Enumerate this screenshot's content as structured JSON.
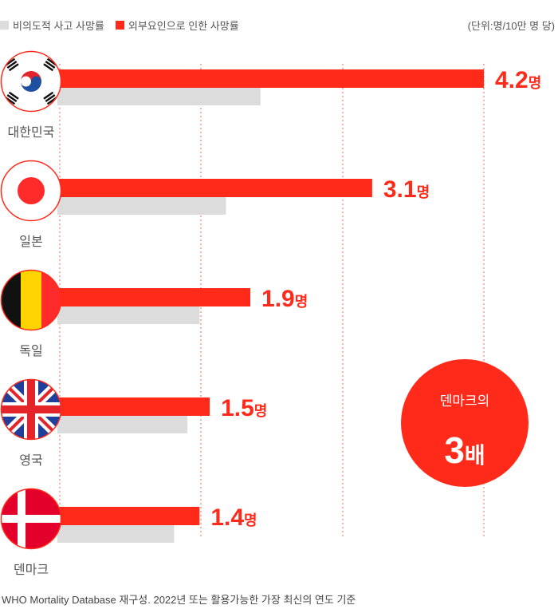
{
  "legend": {
    "gray_label": "비의도적 사고 사망률",
    "red_label": "외부요인으로 인한 사망률",
    "unit": "(단위:명/10만 명 당)"
  },
  "colors": {
    "red": "#ff2a1a",
    "gray": "#dcdcdc",
    "grid": "#e86a5a"
  },
  "chart_data": {
    "type": "bar",
    "categories": [
      "대한민국",
      "일본",
      "독일",
      "영국",
      "덴마크"
    ],
    "flags": [
      "korea-flag",
      "japan-flag",
      "germany-flag",
      "uk-flag",
      "denmark-flag"
    ],
    "series": [
      {
        "name": "외부요인으로 인한 사망률",
        "values": [
          4.2,
          3.1,
          1.9,
          1.5,
          1.4
        ],
        "labels": [
          "4.2",
          "3.1",
          "1.9",
          "1.5",
          "1.4"
        ]
      },
      {
        "name": "비의도적 사고 사망률",
        "values": [
          2.0,
          1.66,
          1.4,
          1.28,
          1.15
        ]
      }
    ],
    "value_suffix": "명",
    "xlim": [
      0,
      4.2
    ]
  },
  "callout": {
    "line1": "덴마크의",
    "big": "3",
    "suffix": "배"
  },
  "source": "WHO Mortality Database 재구성. 2022년 또는 활용가능한 가장 최신의 연도 기준"
}
